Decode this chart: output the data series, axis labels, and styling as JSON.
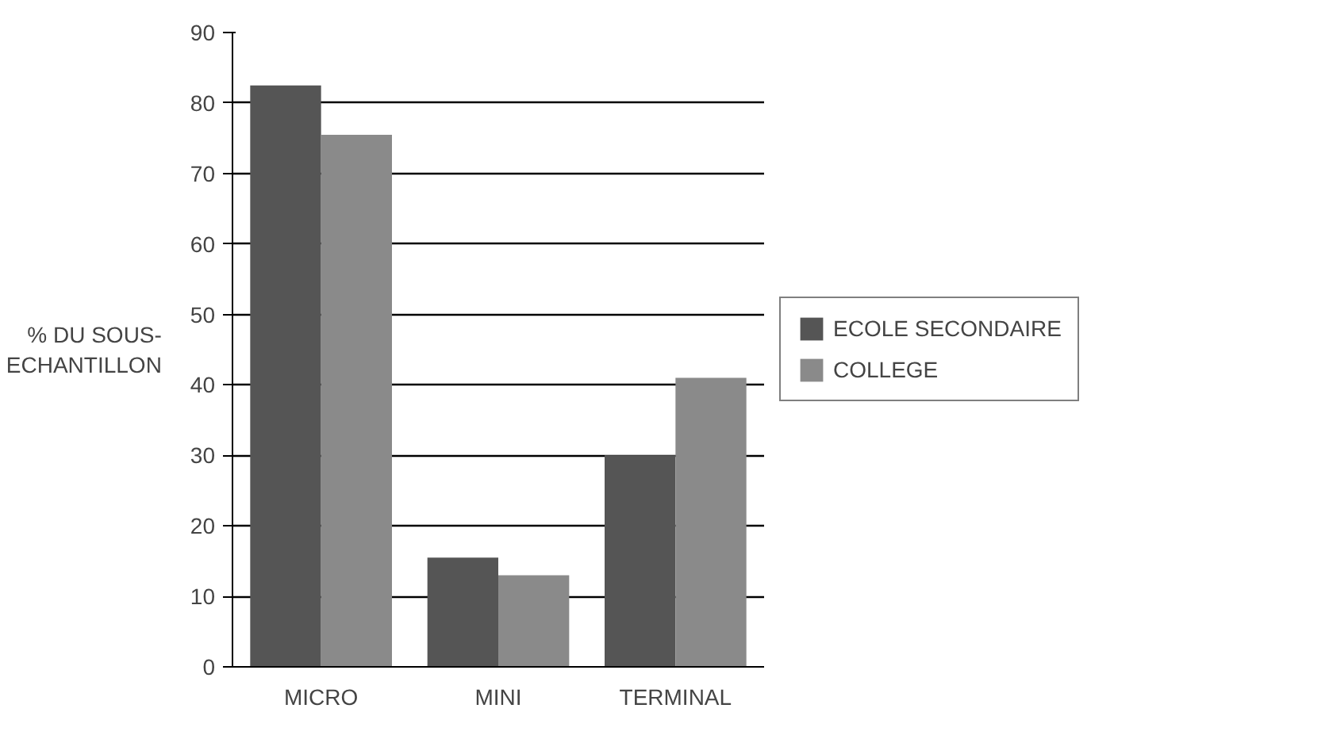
{
  "chart_data": {
    "type": "bar",
    "categories": [
      "MICRO",
      "MINI",
      "TERMINAL"
    ],
    "ylabel": "% DU SOUS-ECHANTILLON",
    "series": [
      {
        "name": "ECOLE SECONDAIRE",
        "color": "#555555",
        "values": [
          82.5,
          15.5,
          30
        ]
      },
      {
        "name": "COLLEGE",
        "color": "#8a8a8a",
        "values": [
          75.5,
          13,
          41
        ]
      }
    ],
    "ylim": [
      0,
      90
    ],
    "yticks": [
      0,
      10,
      20,
      30,
      40,
      50,
      60,
      70,
      80,
      90
    ],
    "grid": "y",
    "legend": "right"
  }
}
